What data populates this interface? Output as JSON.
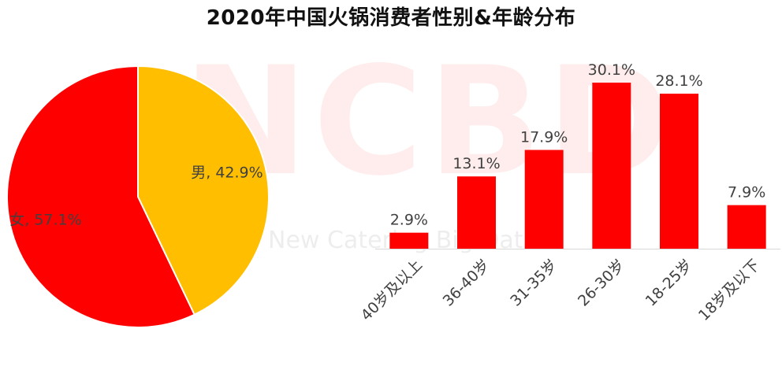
{
  "title": "2020年中国火锅消费者性别&年龄分布",
  "watermark": {
    "logo": "NCBD",
    "subtitle": "New Catering Big Data"
  },
  "colors": {
    "female": "#ff0000",
    "male": "#ffbf00",
    "bar": "#ff0000",
    "axis": "#d9d9d9",
    "label": "#404040"
  },
  "chart_data": [
    {
      "type": "pie",
      "slices": [
        {
          "name": "男",
          "value": 42.9,
          "label": "男, 42.9%",
          "color": "#ffbf00"
        },
        {
          "name": "女",
          "value": 57.1,
          "label": "女, 57.1%",
          "color": "#ff0000"
        }
      ]
    },
    {
      "type": "bar",
      "categories": [
        "40岁及以上",
        "36-40岁",
        "31-35岁",
        "26-30岁",
        "18-25岁",
        "18岁及以下"
      ],
      "values": [
        2.9,
        13.1,
        17.9,
        30.1,
        28.1,
        7.9
      ],
      "data_labels": [
        "2.9%",
        "13.1%",
        "17.9%",
        "30.1%",
        "28.1%",
        "7.9%"
      ],
      "ylim": [
        0,
        30.1
      ],
      "grid": false,
      "color": "#ff0000"
    }
  ]
}
